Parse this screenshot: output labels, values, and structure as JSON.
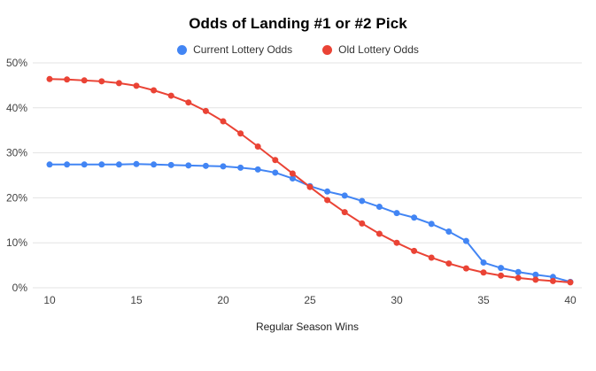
{
  "chart": {
    "title": "Odds of Landing #1 or #2 Pick",
    "xlabel": "Regular Season Wins"
  },
  "chart_data": {
    "type": "line",
    "title": "Odds of Landing #1 or #2 Pick",
    "xlabel": "Regular Season Wins",
    "ylabel": "",
    "xlim": [
      10,
      40
    ],
    "ylim": [
      0,
      50
    ],
    "grid": "horizontal",
    "legend_position": "top",
    "xticks": [
      10,
      15,
      20,
      25,
      30,
      35,
      40
    ],
    "xtick_labels": [
      "10",
      "15",
      "20",
      "25",
      "30",
      "35",
      "40"
    ],
    "yticks": [
      0,
      10,
      20,
      30,
      40,
      50
    ],
    "ytick_labels": [
      "0%",
      "10%",
      "20%",
      "30%",
      "40%",
      "50%"
    ],
    "x": [
      10,
      11,
      12,
      13,
      14,
      15,
      16,
      17,
      18,
      19,
      20,
      21,
      22,
      23,
      24,
      25,
      26,
      27,
      28,
      29,
      30,
      31,
      32,
      33,
      34,
      35,
      36,
      37,
      38,
      39,
      40
    ],
    "series": [
      {
        "name": "Current Lottery Odds",
        "color": "#4285f4",
        "values": [
          27.4,
          27.4,
          27.4,
          27.4,
          27.4,
          27.5,
          27.4,
          27.3,
          27.2,
          27.1,
          27.0,
          26.7,
          26.3,
          25.6,
          24.3,
          22.6,
          21.4,
          20.5,
          19.3,
          18.0,
          16.6,
          15.6,
          14.2,
          12.5,
          10.4,
          5.6,
          4.4,
          3.5,
          2.9,
          2.4,
          1.3
        ]
      },
      {
        "name": "Old Lottery Odds",
        "color": "#ea4335",
        "values": [
          46.4,
          46.3,
          46.1,
          45.9,
          45.5,
          44.9,
          43.9,
          42.7,
          41.2,
          39.3,
          37.0,
          34.3,
          31.4,
          28.4,
          25.4,
          22.4,
          19.5,
          16.8,
          14.3,
          12.0,
          10.0,
          8.2,
          6.7,
          5.4,
          4.3,
          3.4,
          2.7,
          2.2,
          1.8,
          1.5,
          1.2
        ]
      }
    ],
    "style": {
      "gridline_color": "#e3e3e3",
      "line_width": 2,
      "point_radius": 3.5
    }
  }
}
